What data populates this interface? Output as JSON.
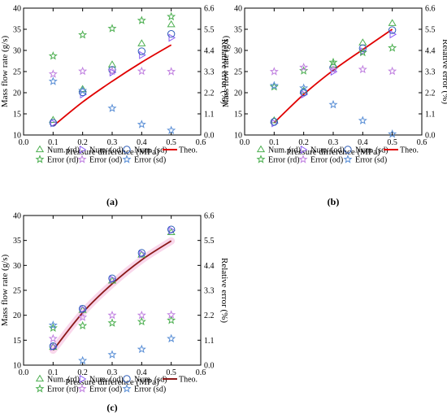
{
  "chart_data": [
    {
      "panel": "(a)",
      "type": "scatter",
      "xlabel": "Pressure difference (MPa)",
      "ylabel_left": "Mass flow rate (g/s)",
      "ylabel_right": "Relative error (%)",
      "xlim": [
        0.0,
        0.6
      ],
      "ylim_left": [
        10,
        40
      ],
      "ylim_right": [
        0.0,
        6.6
      ],
      "x_ticks": [
        "0.0",
        "0.1",
        "0.2",
        "0.3",
        "0.4",
        "0.5",
        "0.6"
      ],
      "y_ticks_left": [
        "10",
        "15",
        "20",
        "25",
        "30",
        "35",
        "40"
      ],
      "y_ticks_right": [
        "0.0",
        "1.1",
        "2.2",
        "3.3",
        "4.4",
        "5.5",
        "6.6"
      ],
      "grid": false,
      "theo_curve": {
        "x": [
          0.1,
          0.2,
          0.3,
          0.4,
          0.5
        ],
        "y": [
          12.1,
          17.8,
          22.7,
          27.2,
          31.3
        ]
      },
      "series": [
        {
          "name": "Num. (rd)",
          "marker": "triangle-up",
          "color": "#4caf50",
          "axis": "left",
          "x": [
            0.1,
            0.2,
            0.3,
            0.4,
            0.5
          ],
          "y": [
            13.5,
            20.8,
            26.6,
            31.6,
            36.1
          ]
        },
        {
          "name": "Num. (od)",
          "marker": "triangle-right",
          "color": "#8b5cf6",
          "axis": "left",
          "x": [
            0.1,
            0.2,
            0.3,
            0.4,
            0.5
          ],
          "y": [
            12.8,
            19.6,
            24.8,
            28.9,
            33.0
          ]
        },
        {
          "name": "Num. (sd)",
          "marker": "circle",
          "color": "#2f5db8",
          "axis": "left",
          "x": [
            0.1,
            0.2,
            0.3,
            0.4,
            0.5
          ],
          "y": [
            12.9,
            20.1,
            25.4,
            29.8,
            33.9
          ]
        },
        {
          "name": "Theo.",
          "marker": "line",
          "color": "#e00000",
          "axis": "left",
          "x": [],
          "y": []
        },
        {
          "name": "Error (rd)",
          "marker": "star",
          "color": "#4caf50",
          "axis": "right",
          "x": [
            0.1,
            0.2,
            0.3,
            0.4,
            0.5
          ],
          "y": [
            4.11,
            5.21,
            5.54,
            5.96,
            6.16
          ]
        },
        {
          "name": "Error (od)",
          "marker": "star",
          "color": "#c080e0",
          "axis": "right",
          "x": [
            0.1,
            0.2,
            0.3,
            0.4,
            0.5
          ],
          "y": [
            3.17,
            3.32,
            3.32,
            3.32,
            3.3
          ]
        },
        {
          "name": "Error (sd)",
          "marker": "star",
          "color": "#5a8fd6",
          "axis": "right",
          "x": [
            0.1,
            0.2,
            0.3,
            0.4,
            0.5
          ],
          "y": [
            2.79,
            2.31,
            1.39,
            0.55,
            0.24
          ]
        }
      ]
    },
    {
      "panel": "(b)",
      "type": "scatter",
      "xlabel": "Pressure difference (MPa)",
      "ylabel_left": "Mass flow rate (g/s)",
      "ylabel_right": "Relative error (%)",
      "xlim": [
        0.0,
        0.6
      ],
      "ylim_left": [
        10,
        40
      ],
      "ylim_right": [
        0.0,
        6.6
      ],
      "x_ticks": [
        "0.0",
        "0.1",
        "0.2",
        "0.3",
        "0.4",
        "0.5",
        "0.6"
      ],
      "y_ticks_left": [
        "10",
        "15",
        "20",
        "25",
        "30",
        "35",
        "40"
      ],
      "y_ticks_right": [
        "0.0",
        "1.1",
        "2.2",
        "3.3",
        "4.4",
        "5.5",
        "6.6"
      ],
      "grid": false,
      "theo_curve": {
        "x": [
          0.1,
          0.2,
          0.3,
          0.4,
          0.5
        ],
        "y": [
          12.9,
          19.6,
          25.3,
          30.2,
          35.0
        ]
      },
      "series": [
        {
          "name": "Num. (rd)",
          "marker": "triangle-up",
          "color": "#4caf50",
          "axis": "left",
          "x": [
            0.1,
            0.2,
            0.3,
            0.4,
            0.5
          ],
          "y": [
            13.4,
            20.4,
            26.6,
            31.8,
            36.4
          ]
        },
        {
          "name": "Num. (od)",
          "marker": "triangle-right",
          "color": "#8b5cf6",
          "axis": "left",
          "x": [
            0.1,
            0.2,
            0.3,
            0.4,
            0.5
          ],
          "y": [
            12.8,
            19.6,
            25.0,
            29.8,
            33.8
          ]
        },
        {
          "name": "Num. (sd)",
          "marker": "circle",
          "color": "#2f5db8",
          "axis": "left",
          "x": [
            0.1,
            0.2,
            0.3,
            0.4,
            0.5
          ],
          "y": [
            13.1,
            20.1,
            25.9,
            30.5,
            34.8
          ]
        },
        {
          "name": "Theo.",
          "marker": "line",
          "color": "#e00000",
          "axis": "left",
          "x": [],
          "y": []
        },
        {
          "name": "Error (rd)",
          "marker": "star",
          "color": "#4caf50",
          "axis": "right",
          "x": [
            0.1,
            0.2,
            0.3,
            0.4,
            0.5
          ],
          "y": [
            2.51,
            3.34,
            3.78,
            4.29,
            4.53
          ]
        },
        {
          "name": "Error (od)",
          "marker": "star",
          "color": "#c080e0",
          "axis": "right",
          "x": [
            0.1,
            0.2,
            0.3,
            0.4,
            0.5
          ],
          "y": [
            3.3,
            3.52,
            3.39,
            3.41,
            3.32
          ]
        },
        {
          "name": "Error (sd)",
          "marker": "star",
          "color": "#5a8fd6",
          "axis": "right",
          "x": [
            0.1,
            0.2,
            0.3,
            0.4,
            0.5
          ],
          "y": [
            2.57,
            2.44,
            1.58,
            0.75,
            0.05
          ]
        }
      ]
    },
    {
      "panel": "(c)",
      "type": "scatter",
      "xlabel": "Pressure difference (MPa)",
      "ylabel_left": "Mass flow rate (g/s)",
      "ylabel_right": "Relative error (%)",
      "xlim": [
        0.0,
        0.6
      ],
      "ylim_left": [
        10,
        40
      ],
      "ylim_right": [
        0.0,
        6.6
      ],
      "x_ticks": [
        "0.0",
        "0.1",
        "0.2",
        "0.3",
        "0.4",
        "0.5",
        "0.6"
      ],
      "y_ticks_left": [
        "10",
        "15",
        "20",
        "25",
        "30",
        "35",
        "40"
      ],
      "y_ticks_right": [
        "0.0",
        "1.1",
        "2.2",
        "3.3",
        "4.4",
        "5.5",
        "6.6"
      ],
      "grid": false,
      "theo_curve": {
        "x": [
          0.1,
          0.2,
          0.3,
          0.4,
          0.5
        ],
        "y": [
          13.0,
          20.5,
          26.3,
          31.1,
          34.9
        ]
      },
      "series": [
        {
          "name": "Num. (rd)",
          "marker": "triangle-up",
          "color": "#4caf50",
          "axis": "left",
          "x": [
            0.1,
            0.2,
            0.3,
            0.4,
            0.5
          ],
          "y": [
            13.6,
            21.0,
            26.9,
            32.1,
            36.6
          ]
        },
        {
          "name": "Num. (od)",
          "marker": "triangle-right",
          "color": "#8b5cf6",
          "axis": "left",
          "x": [
            0.1,
            0.2,
            0.3,
            0.4,
            0.5
          ],
          "y": [
            13.7,
            21.2,
            27.2,
            32.3,
            37.0
          ]
        },
        {
          "name": "Num. (sd)",
          "marker": "circle",
          "color": "#2f5db8",
          "axis": "left",
          "x": [
            0.1,
            0.2,
            0.3,
            0.4,
            0.5
          ],
          "y": [
            13.8,
            21.3,
            27.4,
            32.5,
            37.2
          ]
        },
        {
          "name": "Theo.",
          "marker": "line",
          "color": "#8b1a1a",
          "axis": "left",
          "x": [],
          "y": []
        },
        {
          "name": "Error (rd)",
          "marker": "star",
          "color": "#4caf50",
          "axis": "right",
          "x": [
            0.1,
            0.2,
            0.3,
            0.4,
            0.5
          ],
          "y": [
            1.64,
            1.74,
            1.86,
            1.92,
            1.98
          ]
        },
        {
          "name": "Error (od)",
          "marker": "star",
          "color": "#c080e0",
          "axis": "right",
          "x": [
            0.1,
            0.2,
            0.3,
            0.4,
            0.5
          ],
          "y": [
            1.17,
            2.11,
            2.2,
            2.2,
            2.22
          ]
        },
        {
          "name": "Error (sd)",
          "marker": "star",
          "color": "#5a8fd6",
          "axis": "right",
          "x": [
            0.1,
            0.2,
            0.3,
            0.4,
            0.5
          ],
          "y": [
            1.76,
            0.2,
            0.46,
            0.7,
            1.17
          ]
        }
      ]
    }
  ]
}
